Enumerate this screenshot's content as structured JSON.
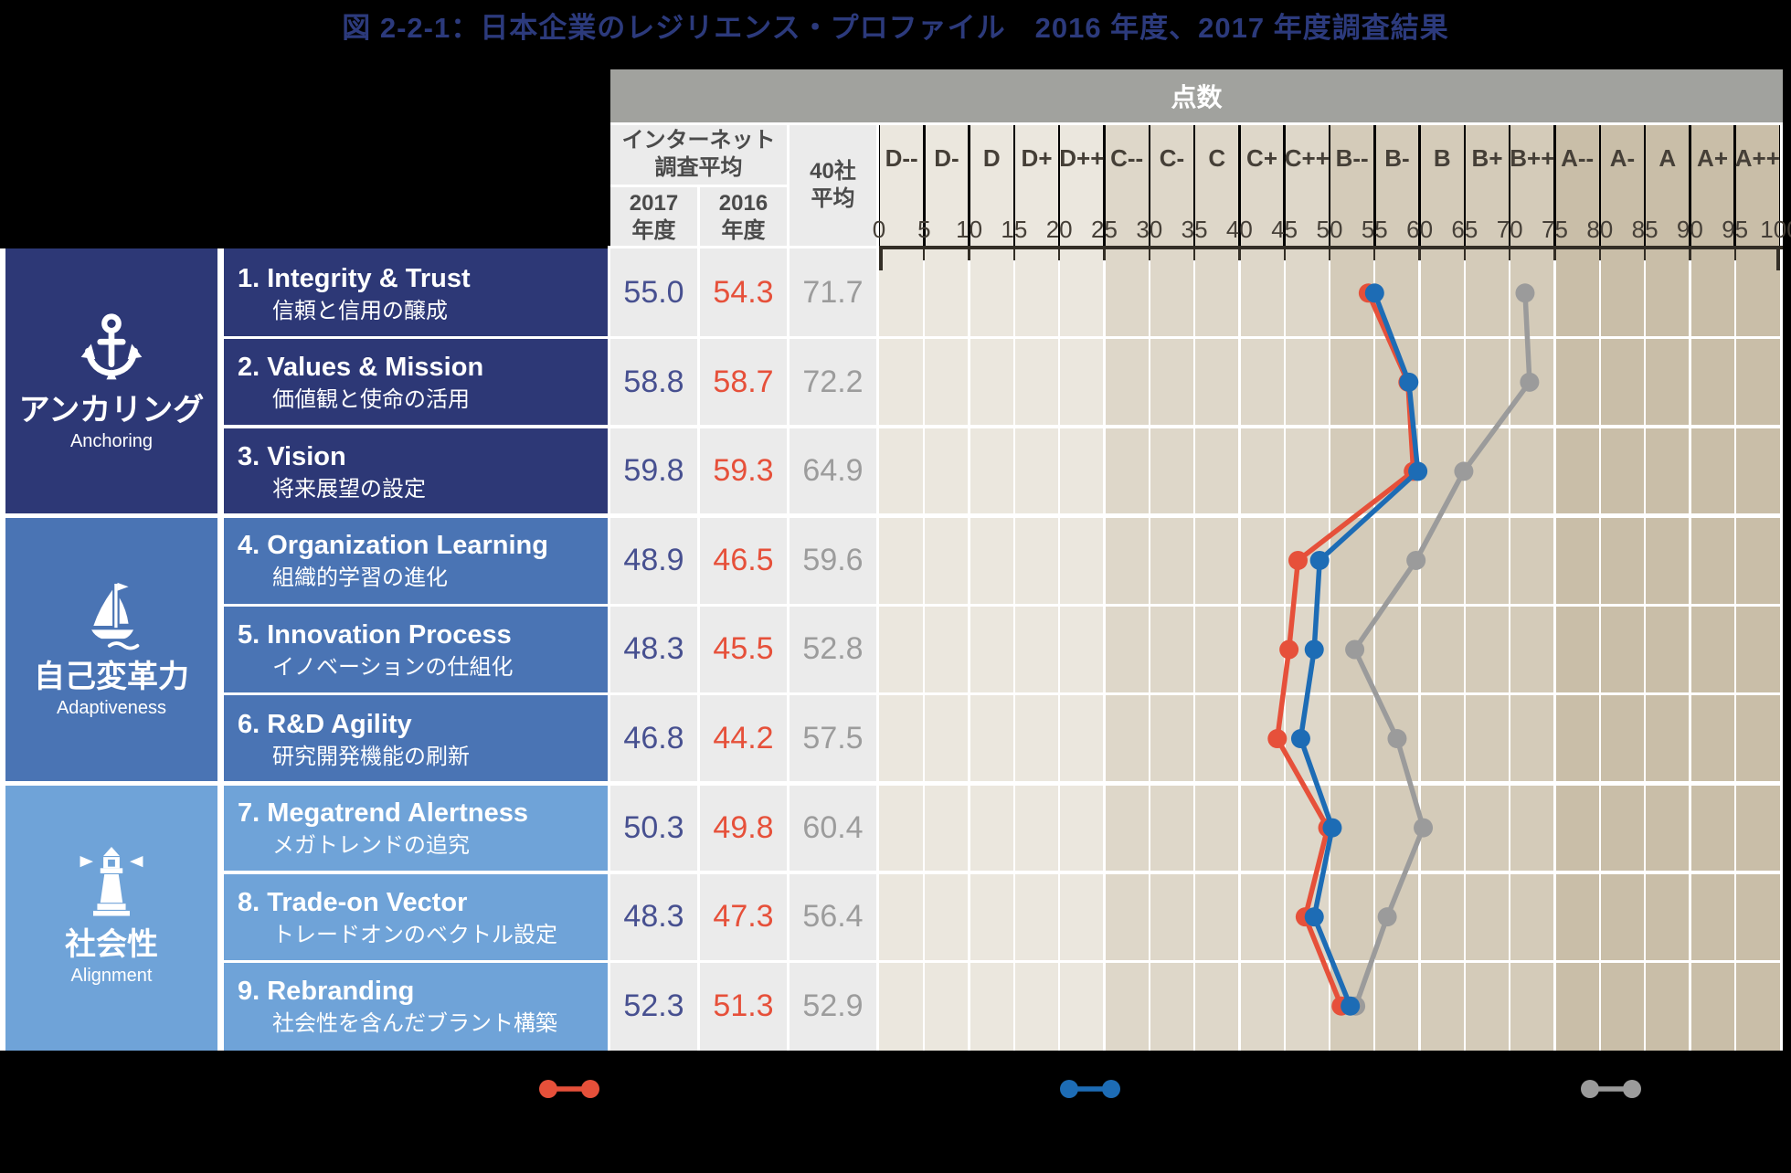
{
  "title": "図 2-2-1：日本企業のレジリエンス・プロファイル　2016 年度、2017 年度調査結果",
  "header": {
    "score_label": "点数",
    "internet_survey_line1": "インターネット",
    "internet_survey_line2": "調査平均",
    "col_2017_line1": "2017",
    "col_2017_line2": "年度",
    "col_2016_line1": "2016",
    "col_2016_line2": "年度",
    "col_40_line1": "40社",
    "col_40_line2": "平均"
  },
  "grade_labels": [
    "D--",
    "D-",
    "D",
    "D+",
    "D++",
    "C--",
    "C-",
    "C",
    "C+",
    "C++",
    "B--",
    "B-",
    "B",
    "B+",
    "B++",
    "A--",
    "A-",
    "A",
    "A+",
    "A++"
  ],
  "axis_tick_labels": [
    "0",
    "5",
    "10",
    "15",
    "20",
    "25",
    "30",
    "35",
    "40",
    "45",
    "50",
    "55",
    "60",
    "65",
    "70",
    "75",
    "80",
    "85",
    "90",
    "95",
    "100"
  ],
  "groups": [
    {
      "ja": "アンカリング",
      "en": "Anchoring",
      "icon": "anchor-icon",
      "color": "#2d3876"
    },
    {
      "ja": "自己変革力",
      "en": "Adaptiveness",
      "icon": "sailboat-icon",
      "color": "#4a74b4"
    },
    {
      "ja": "社会性",
      "en": "Alignment",
      "icon": "lighthouse-icon",
      "color": "#6fa3d8"
    }
  ],
  "rows": [
    {
      "group": 0,
      "title": "1. Integrity & Trust",
      "subtitle": "信頼と信用の醸成",
      "v2017": "55.0",
      "v2016": "54.3",
      "v40": "71.7"
    },
    {
      "group": 0,
      "title": "2. Values & Mission",
      "subtitle": "価値観と使命の活用",
      "v2017": "58.8",
      "v2016": "58.7",
      "v40": "72.2"
    },
    {
      "group": 0,
      "title": "3. Vision",
      "subtitle": "将来展望の設定",
      "v2017": "59.8",
      "v2016": "59.3",
      "v40": "64.9"
    },
    {
      "group": 1,
      "title": "4. Organization Learning",
      "subtitle": "組織的学習の進化",
      "v2017": "48.9",
      "v2016": "46.5",
      "v40": "59.6"
    },
    {
      "group": 1,
      "title": "5. Innovation Process",
      "subtitle": "イノベーションの仕組化",
      "v2017": "48.3",
      "v2016": "45.5",
      "v40": "52.8"
    },
    {
      "group": 1,
      "title": "6. R&D Agility",
      "subtitle": "研究開発機能の刷新",
      "v2017": "46.8",
      "v2016": "44.2",
      "v40": "57.5"
    },
    {
      "group": 2,
      "title": "7. Megatrend Alertness",
      "subtitle": "メガトレンドの追究",
      "v2017": "50.3",
      "v2016": "49.8",
      "v40": "60.4"
    },
    {
      "group": 2,
      "title": "8. Trade-on Vector",
      "subtitle": "トレードオンのベクトル設定",
      "v2017": "48.3",
      "v2016": "47.3",
      "v40": "56.4"
    },
    {
      "group": 2,
      "title": "9. Rebranding",
      "subtitle": "社会性を含んだブラント構築",
      "v2017": "52.3",
      "v2016": "51.3",
      "v40": "52.9"
    }
  ],
  "chart_data": {
    "type": "line",
    "orientation": "horizontal-value-axis, categories stacked vertically",
    "title": "図 2-2-1：日本企業のレジリエンス・プロファイル　2016 年度、2017 年度調査結果",
    "categories": [
      "1. Integrity & Trust",
      "2. Values & Mission",
      "3. Vision",
      "4. Organization Learning",
      "5. Innovation Process",
      "6. R&D Agility",
      "7. Megatrend Alertness",
      "8. Trade-on Vector",
      "9. Rebranding"
    ],
    "series": [
      {
        "name": "インターネット調査平均 2016年度",
        "color": "#e6503a",
        "values": [
          54.3,
          58.7,
          59.3,
          46.5,
          45.5,
          44.2,
          49.8,
          47.3,
          51.3
        ]
      },
      {
        "name": "インターネット調査平均 2017年度",
        "color": "#1d6cb5",
        "values": [
          55.0,
          58.8,
          59.8,
          48.9,
          48.3,
          46.8,
          50.3,
          48.3,
          52.3
        ]
      },
      {
        "name": "40社平均",
        "color": "#9b9b9b",
        "values": [
          71.7,
          72.2,
          64.9,
          59.6,
          52.8,
          57.5,
          60.4,
          56.4,
          52.9
        ]
      }
    ],
    "value_axis": {
      "label": "点数",
      "min": 0,
      "max": 100,
      "step": 5,
      "grade_bands": [
        {
          "grades": "D-- to D++",
          "range": [
            0,
            25
          ],
          "color": "#ebe7de"
        },
        {
          "grades": "C-- to C++",
          "range": [
            25,
            50
          ],
          "color": "#ded7c9"
        },
        {
          "grades": "B-- to B++",
          "range": [
            50,
            75
          ],
          "color": "#d4cbb9"
        },
        {
          "grades": "A-- to A++",
          "range": [
            75,
            100
          ],
          "color": "#c9bea8"
        }
      ]
    },
    "grid": "white vertical lines every 5 points, white horizontal lines between category rows",
    "legend_position": "bottom (marker symbols only visible)"
  },
  "colors": {
    "title_text": "#2c3a7c",
    "score_bar_bg": "#a1a29e",
    "score_bar_text": "#ffffff",
    "header_cell_bg": "#ebebeb",
    "header_text": "#4b4b4b",
    "value_cell_bg": "#ebebeb",
    "v2017_text": "#475090",
    "v2016_text": "#e6503a",
    "v40_text": "#9c9c9c",
    "grade_text": "#453f37",
    "axis_line": "#332e26",
    "grid_white": "#ffffff"
  }
}
